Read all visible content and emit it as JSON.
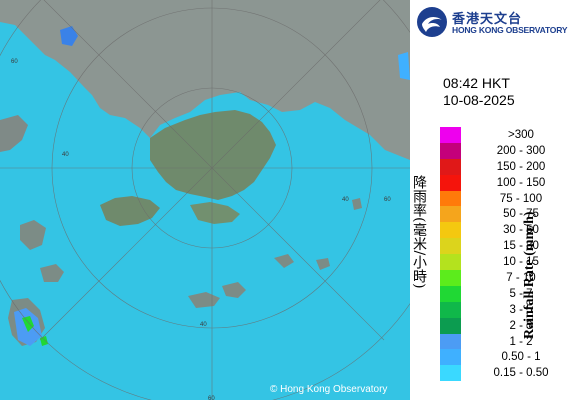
{
  "organization": {
    "name_zh": "香港天文台",
    "name_en": "HONG KONG OBSERVATORY"
  },
  "timestamp": {
    "time": "08:42 HKT",
    "date": "10-08-2025"
  },
  "legend": {
    "title_en": "Rainfall Rate (mm/h)",
    "title_zh": "降雨率(毫米/小時)",
    "items": [
      {
        "label": ">300",
        "color": "#ee00ee"
      },
      {
        "label": "200 - 300",
        "color": "#c4007b"
      },
      {
        "label": "150 - 200",
        "color": "#e01818"
      },
      {
        "label": "100 - 150",
        "color": "#f5140c"
      },
      {
        "label": "75 - 100",
        "color": "#ff7a0a"
      },
      {
        "label": "50 - 75",
        "color": "#f5a51c"
      },
      {
        "label": "30 - 50",
        "color": "#f4c810"
      },
      {
        "label": "15 - 30",
        "color": "#dcd41c"
      },
      {
        "label": "10 - 15",
        "color": "#b4e21e"
      },
      {
        "label": "7 - 10",
        "color": "#5cec1c"
      },
      {
        "label": "5 - 7",
        "color": "#20d834"
      },
      {
        "label": "3 - 5",
        "color": "#10b84a"
      },
      {
        "label": "2 - 3",
        "color": "#0c9c50"
      },
      {
        "label": "1 - 2",
        "color": "#4c9cf4"
      },
      {
        "label": "0.50 - 1",
        "color": "#3fb0ff"
      },
      {
        "label": "0.15 - 0.50",
        "color": "#3ad9ff"
      }
    ]
  },
  "map": {
    "range_ring_labels": [
      "60",
      "40",
      "60",
      "40",
      "60",
      "40"
    ],
    "sea_color": "#34c4e4"
  },
  "footer": {
    "copyright": "© Hong Kong Observatory"
  }
}
